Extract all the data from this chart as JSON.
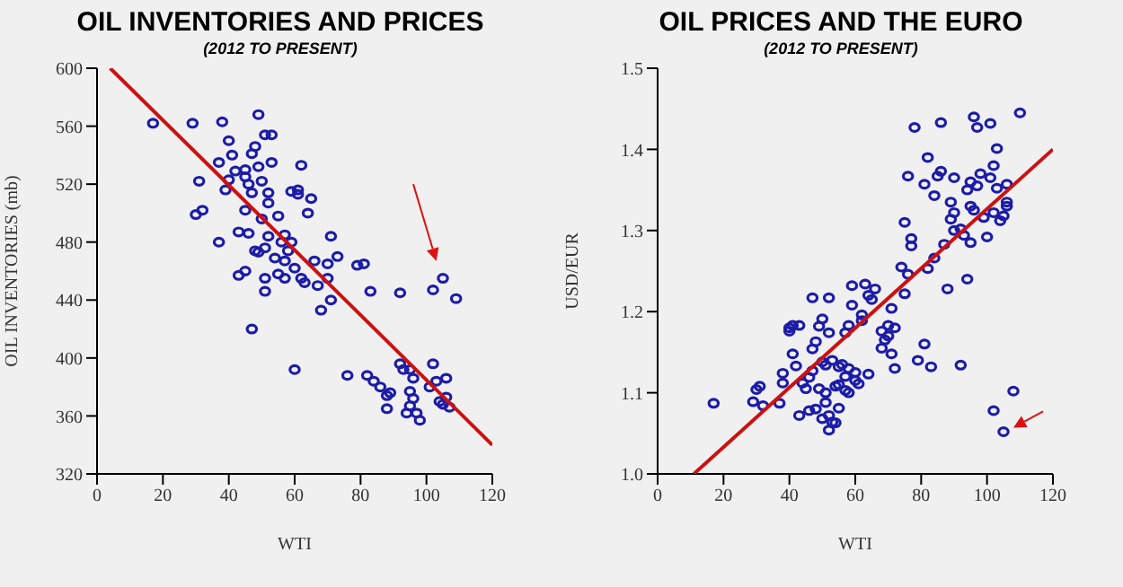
{
  "chart_data": [
    {
      "type": "scatter",
      "title": "OIL INVENTORIES AND PRICES",
      "subtitle": "(2012 TO PRESENT)",
      "xlabel": "WTI",
      "ylabel": "OIL INVENTORIES (mb)",
      "xlim": [
        0,
        120
      ],
      "xticks": [
        0,
        20,
        40,
        60,
        80,
        100,
        120
      ],
      "ylim": [
        320,
        600
      ],
      "yticks": [
        320,
        360,
        400,
        440,
        480,
        520,
        560,
        600
      ],
      "series": [
        {
          "marker": "circle",
          "color": "#1c1ca8",
          "x": [
            17,
            29,
            38,
            49,
            51,
            53,
            30,
            31,
            32,
            37,
            37,
            39,
            40,
            40,
            41,
            42,
            43,
            43,
            45,
            45,
            45,
            45,
            46,
            46,
            47,
            47,
            47,
            48,
            48,
            49,
            49,
            50,
            50,
            51,
            51,
            51,
            52,
            52,
            52,
            53,
            54,
            55,
            55,
            56,
            57,
            57,
            57,
            58,
            59,
            59,
            60,
            60,
            61,
            61,
            62,
            62,
            63,
            64,
            65,
            66,
            67,
            68,
            70,
            70,
            71,
            71,
            73,
            76,
            79,
            81,
            82,
            83,
            84,
            86,
            88,
            88,
            89,
            92,
            92,
            93,
            94,
            95,
            95,
            95,
            96,
            96,
            97,
            98,
            101,
            102,
            102,
            103,
            104,
            105,
            105,
            106,
            106,
            107,
            109
          ],
          "values": [
            562,
            562,
            563,
            568,
            554,
            554,
            499,
            522,
            502,
            480,
            535,
            516,
            523,
            550,
            540,
            529,
            487,
            457,
            460,
            502,
            525,
            530,
            520,
            486,
            541,
            514,
            420,
            546,
            474,
            532,
            473,
            522,
            496,
            446,
            455,
            476,
            484,
            507,
            514,
            535,
            469,
            498,
            458,
            480,
            485,
            467,
            455,
            474,
            515,
            480,
            392,
            462,
            513,
            516,
            533,
            455,
            452,
            500,
            510,
            467,
            450,
            433,
            455,
            465,
            440,
            484,
            470,
            388,
            464,
            465,
            388,
            446,
            384,
            380,
            374,
            365,
            376,
            445,
            396,
            392,
            362,
            392,
            377,
            367,
            386,
            372,
            362,
            357,
            380,
            396,
            447,
            384,
            370,
            368,
            455,
            386,
            373,
            366,
            441
          ]
        },
        {
          "type": "line",
          "marker": "none",
          "color": "#cc1111",
          "x": [
            4,
            120
          ],
          "values": [
            600,
            340
          ]
        }
      ]
    },
    {
      "type": "scatter",
      "title": "OIL PRICES AND THE EURO",
      "subtitle": "(2012 TO PRESENT)",
      "xlabel": "WTI",
      "ylabel": "USD/EUR",
      "xlim": [
        0,
        120
      ],
      "xticks": [
        0,
        20,
        40,
        60,
        80,
        100,
        120
      ],
      "ylim": [
        1.0,
        1.5
      ],
      "yticks": [
        {
          "value": 1.0,
          "label": "1.0"
        },
        1.1,
        1.2,
        1.3,
        1.4,
        1.5
      ],
      "series": [
        {
          "marker": "circle",
          "color": "#1c1ca8",
          "x": [
            17,
            29,
            30,
            31,
            32,
            37,
            38,
            38,
            40,
            40,
            41,
            41,
            42,
            43,
            43,
            44,
            45,
            46,
            46,
            47,
            47,
            47,
            48,
            48,
            49,
            49,
            50,
            50,
            50,
            51,
            51,
            51,
            52,
            52,
            52,
            52,
            53,
            53,
            54,
            54,
            55,
            55,
            55,
            56,
            57,
            57,
            57,
            58,
            58,
            58,
            59,
            59,
            60,
            60,
            61,
            62,
            62,
            63,
            64,
            64,
            65,
            66,
            68,
            68,
            69,
            70,
            70,
            71,
            71,
            72,
            72,
            74,
            75,
            75,
            76,
            76,
            77,
            77,
            78,
            79,
            81,
            81,
            82,
            82,
            83,
            84,
            84,
            85,
            86,
            86,
            87,
            88,
            89,
            89,
            90,
            90,
            90,
            92,
            92,
            93,
            94,
            94,
            95,
            95,
            95,
            96,
            96,
            97,
            97,
            98,
            99,
            100,
            101,
            101,
            102,
            102,
            102,
            103,
            103,
            104,
            105,
            105,
            106,
            106,
            106,
            108,
            110
          ],
          "values": [
            1.087,
            1.089,
            1.104,
            1.108,
            1.084,
            1.087,
            1.112,
            1.124,
            1.176,
            1.18,
            1.183,
            1.148,
            1.133,
            1.183,
            1.072,
            1.112,
            1.105,
            1.119,
            1.078,
            1.127,
            1.154,
            1.217,
            1.163,
            1.08,
            1.182,
            1.105,
            1.138,
            1.191,
            1.068,
            1.134,
            1.1,
            1.088,
            1.174,
            1.217,
            1.072,
            1.054,
            1.14,
            1.064,
            1.108,
            1.063,
            1.132,
            1.081,
            1.11,
            1.135,
            1.103,
            1.12,
            1.174,
            1.13,
            1.183,
            1.1,
            1.232,
            1.208,
            1.115,
            1.125,
            1.111,
            1.196,
            1.189,
            1.234,
            1.22,
            1.123,
            1.215,
            1.228,
            1.155,
            1.176,
            1.165,
            1.183,
            1.17,
            1.148,
            1.204,
            1.13,
            1.18,
            1.255,
            1.31,
            1.222,
            1.246,
            1.367,
            1.29,
            1.281,
            1.427,
            1.14,
            1.357,
            1.16,
            1.39,
            1.253,
            1.132,
            1.266,
            1.343,
            1.367,
            1.373,
            1.433,
            1.283,
            1.228,
            1.314,
            1.335,
            1.365,
            1.322,
            1.3,
            1.134,
            1.302,
            1.294,
            1.35,
            1.24,
            1.33,
            1.285,
            1.36,
            1.325,
            1.44,
            1.427,
            1.355,
            1.37,
            1.316,
            1.292,
            1.365,
            1.432,
            1.38,
            1.078,
            1.322,
            1.401,
            1.352,
            1.312,
            1.318,
            1.052,
            1.357,
            1.335,
            1.33,
            1.102,
            1.445
          ]
        },
        {
          "type": "line",
          "marker": "none",
          "color": "#cc1111",
          "x": [
            11,
            120
          ],
          "values": [
            1.0,
            1.4
          ]
        }
      ]
    }
  ]
}
